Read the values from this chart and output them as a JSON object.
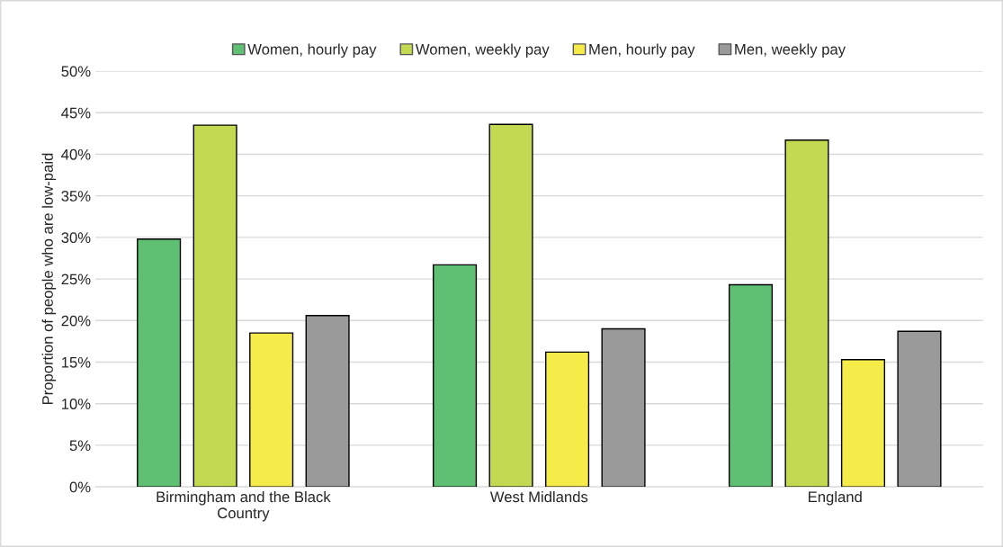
{
  "chart_data": {
    "type": "bar",
    "ylabel": "Proportion of people who are low-paid",
    "categories": [
      "Birmingham and the Black Country",
      "West Midlands",
      "England"
    ],
    "series": [
      {
        "name": "Women, hourly pay",
        "color": "#5fbf73",
        "values": [
          29.8,
          26.7,
          24.3
        ]
      },
      {
        "name": "Women, weekly pay",
        "color": "#c3d952",
        "values": [
          43.5,
          43.6,
          41.7
        ]
      },
      {
        "name": "Men, hourly pay",
        "color": "#f5ec4a",
        "values": [
          18.5,
          16.2,
          15.3
        ]
      },
      {
        "name": "Men, weekly pay",
        "color": "#9a9a9a",
        "values": [
          20.6,
          19.0,
          18.7
        ]
      }
    ],
    "ylim": [
      0,
      50
    ],
    "yticks": [
      {
        "value": 0,
        "label": "0%"
      },
      {
        "value": 5,
        "label": "5%"
      },
      {
        "value": 10,
        "label": "10%"
      },
      {
        "value": 15,
        "label": "15%"
      },
      {
        "value": 20,
        "label": "20%"
      },
      {
        "value": 25,
        "label": "25%"
      },
      {
        "value": 30,
        "label": "30%"
      },
      {
        "value": 35,
        "label": "35%"
      },
      {
        "value": 40,
        "label": "40%"
      },
      {
        "value": 45,
        "label": "45%"
      },
      {
        "value": 50,
        "label": "50%"
      }
    ],
    "grid": "y",
    "legend": "top"
  }
}
